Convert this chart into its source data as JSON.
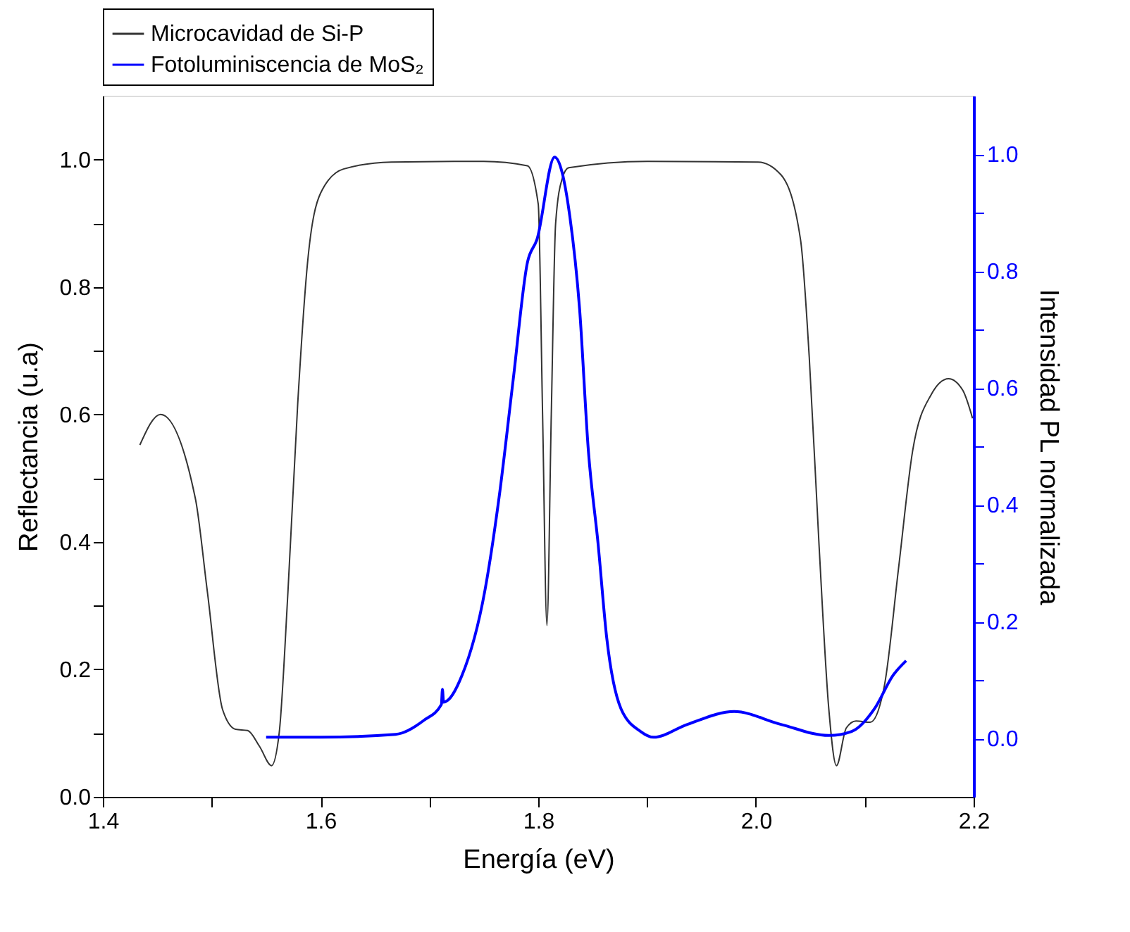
{
  "chart_data": {
    "type": "line",
    "xlabel": "Energía (eV)",
    "ylabel": "Reflectancia (u.a)",
    "y2label": "Intensidad PL normalizada",
    "xlim": [
      1.4,
      2.2
    ],
    "ylim": [
      0,
      1.1
    ],
    "y2lim": [
      -0.1,
      1.1
    ],
    "xticks": [
      {
        "value": 1.4,
        "label": "1.4"
      },
      {
        "value": 1.5,
        "label": null
      },
      {
        "value": 1.6,
        "label": "1.6"
      },
      {
        "value": 1.7,
        "label": null
      },
      {
        "value": 1.8,
        "label": "1.8"
      },
      {
        "value": 1.9,
        "label": null
      },
      {
        "value": 2.0,
        "label": "2.0"
      },
      {
        "value": 2.1,
        "label": null
      },
      {
        "value": 2.2,
        "label": "2.2"
      }
    ],
    "yticks": [
      {
        "value": 0,
        "label": "0.0"
      },
      {
        "value": 0.1,
        "label": null
      },
      {
        "value": 0.2,
        "label": "0.2"
      },
      {
        "value": 0.3,
        "label": null
      },
      {
        "value": 0.4,
        "label": "0.4"
      },
      {
        "value": 0.5,
        "label": null
      },
      {
        "value": 0.6,
        "label": "0.6"
      },
      {
        "value": 0.7,
        "label": null
      },
      {
        "value": 0.8,
        "label": "0.8"
      },
      {
        "value": 0.9,
        "label": null
      },
      {
        "value": 1.0,
        "label": "1.0"
      }
    ],
    "y2ticks": [
      {
        "value": 0,
        "label": "0.0"
      },
      {
        "value": 0.1,
        "label": null
      },
      {
        "value": 0.2,
        "label": "0.2"
      },
      {
        "value": 0.3,
        "label": null
      },
      {
        "value": 0.4,
        "label": "0.4"
      },
      {
        "value": 0.5,
        "label": null
      },
      {
        "value": 0.6,
        "label": "0.6"
      },
      {
        "value": 0.7,
        "label": null
      },
      {
        "value": 0.8,
        "label": "0.8"
      },
      {
        "value": 0.9,
        "label": null
      },
      {
        "value": 1.0,
        "label": "1.0"
      }
    ],
    "grid": false,
    "legend": "top",
    "marker": "none",
    "line_style": "solid",
    "series": [
      {
        "name": "Microcavidad de Si-P",
        "color": "#333333",
        "x": [
          1.434,
          1.453,
          1.485,
          1.496,
          1.51,
          1.522,
          1.533,
          1.544,
          1.555,
          1.562,
          1.57,
          1.579,
          1.588,
          1.6,
          1.621,
          1.665,
          1.75,
          1.79,
          1.8,
          1.804,
          1.808,
          1.812,
          1.816,
          1.822,
          1.828,
          1.9,
          2.002,
          2.023,
          2.041,
          2.049,
          2.058,
          2.067,
          2.074,
          2.083,
          2.092,
          2.105,
          2.118,
          2.131,
          2.144,
          2.161,
          2.177,
          2.19,
          2.199
        ],
        "values": [
          0.552,
          0.6,
          0.468,
          0.322,
          0.137,
          0.106,
          0.104,
          0.079,
          0.049,
          0.1,
          0.32,
          0.616,
          0.837,
          0.947,
          0.985,
          0.996,
          0.997,
          0.99,
          0.93,
          0.6,
          0.269,
          0.6,
          0.9,
          0.97,
          0.987,
          0.997,
          0.996,
          0.976,
          0.874,
          0.69,
          0.395,
          0.137,
          0.049,
          0.108,
          0.119,
          0.117,
          0.174,
          0.358,
          0.543,
          0.631,
          0.656,
          0.638,
          0.594
        ]
      },
      {
        "name": "Fotoluminiscencia de MoS₂",
        "color": "#0000ff",
        "axis": "y2",
        "x": [
          1.55,
          1.6,
          1.669,
          1.695,
          1.711,
          1.712,
          1.713,
          1.73,
          1.751,
          1.764,
          1.777,
          1.79,
          1.799,
          1.815,
          1.829,
          1.838,
          1.846,
          1.855,
          1.863,
          1.876,
          1.894,
          1.906,
          1.937,
          1.98,
          2.023,
          2.067,
          2.088,
          2.109,
          2.126,
          2.138
        ],
        "values": [
          0.002,
          0.002,
          0.007,
          0.031,
          0.058,
          0.084,
          0.062,
          0.108,
          0.253,
          0.412,
          0.614,
          0.814,
          0.855,
          0.995,
          0.894,
          0.735,
          0.494,
          0.333,
          0.171,
          0.051,
          0.012,
          0.002,
          0.024,
          0.046,
          0.024,
          0.005,
          0.012,
          0.051,
          0.108,
          0.133
        ]
      }
    ]
  }
}
